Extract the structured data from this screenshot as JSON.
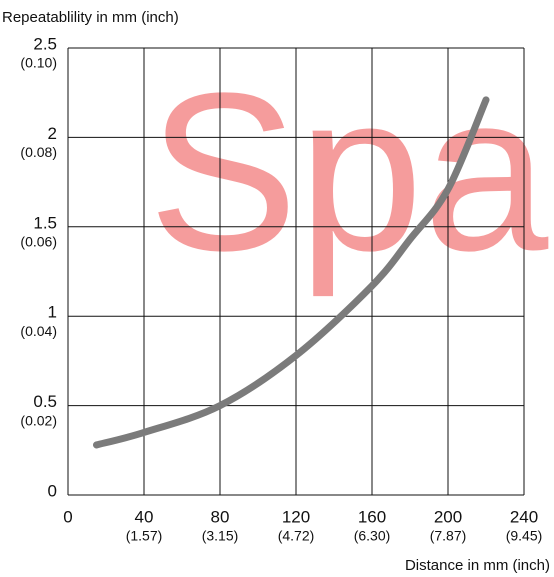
{
  "chart_data": {
    "type": "line",
    "watermark": "Spar",
    "ylabel": "Repeatablility in mm (inch)",
    "xlabel": "Distance in mm (inch)",
    "x": [
      15,
      40,
      80,
      120,
      160,
      180,
      200,
      220
    ],
    "values": [
      0.28,
      0.35,
      0.5,
      0.78,
      1.17,
      1.43,
      1.71,
      2.21
    ],
    "color": "#7b7b7b",
    "xlim": [
      0,
      240
    ],
    "xticks": [
      0,
      40,
      80,
      120,
      160,
      200,
      240
    ],
    "xticks_inch": [
      null,
      "(1.57)",
      "(3.15)",
      "(4.72)",
      "(6.30)",
      "(7.87)",
      "(9.45)"
    ],
    "ylim": [
      0,
      2.5
    ],
    "yticks": [
      0,
      0.5,
      1,
      1.5,
      2,
      2.5
    ],
    "yticks_inch": [
      null,
      "(0.02)",
      "(0.04)",
      "(0.06)",
      "(0.08)",
      "(0.10)"
    ],
    "grid": true
  }
}
